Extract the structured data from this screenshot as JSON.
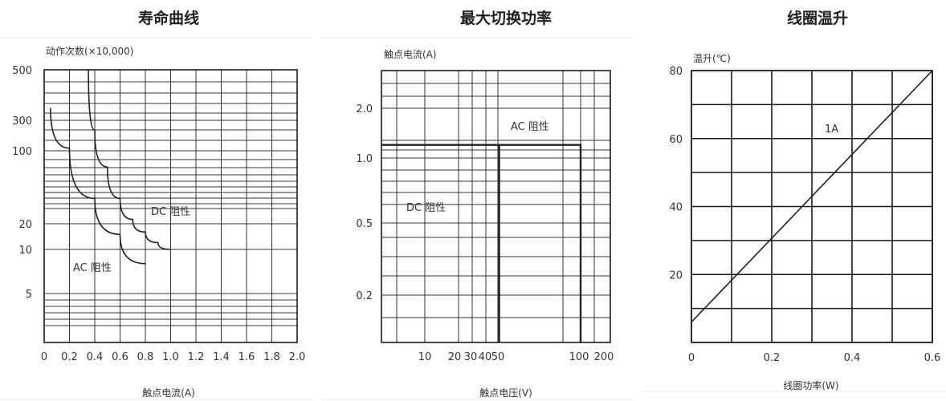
{
  "titles": [
    "寿命曲线",
    "最大切换功率",
    "线圈温升"
  ],
  "chart_data": [
    {
      "type": "line",
      "title": "寿命曲线",
      "ylabel": "动作次数(×10,000)",
      "xlabel": "触点电流(A)",
      "y_scale": "log",
      "x_ticks": [
        "0",
        "0.2",
        "0.4",
        "0.6",
        "0.8",
        "1.0",
        "1.2",
        "1.4",
        "1.6",
        "1.8",
        "2.0"
      ],
      "y_ticks": [
        "500",
        "300",
        "100",
        "20",
        "10",
        "5"
      ],
      "xlim": [
        0,
        2.0
      ],
      "series": [
        {
          "name": "DC 阻性",
          "x": [
            0.35,
            0.4,
            0.5,
            0.6,
            0.7,
            0.8,
            0.9,
            1.0
          ],
          "y": [
            500,
            210,
            70,
            35,
            22,
            16,
            12,
            10
          ]
        },
        {
          "name": "AC 阻性",
          "x": [
            0.05,
            0.2,
            0.4,
            0.6,
            0.8
          ],
          "y": [
            340,
            110,
            35,
            15,
            8
          ]
        }
      ]
    },
    {
      "type": "line",
      "title": "最大切换功率",
      "ylabel": "触点电流(A)",
      "xlabel": "触点电压(V)",
      "y_scale": "log",
      "x_scale": "log",
      "x_ticks": [
        "10",
        "20",
        "30",
        "40",
        "50",
        "100",
        "200"
      ],
      "y_ticks": [
        "2.0",
        "1.0",
        "0.5",
        "0.2"
      ],
      "series": [
        {
          "name": "AC 阻性",
          "x": [
            1,
            100,
            100
          ],
          "y": [
            1.2,
            1.2,
            0.1
          ]
        },
        {
          "name": "DC 阻性",
          "x": [
            30,
            30
          ],
          "y": [
            1.2,
            0.1
          ]
        }
      ]
    },
    {
      "type": "line",
      "title": "线圈温升",
      "ylabel": "温升(℃)",
      "xlabel": "线圈功率(W)",
      "x_ticks": [
        "0",
        "0.2",
        "0.4",
        "0.6"
      ],
      "y_ticks": [
        "80",
        "60",
        "40",
        "20"
      ],
      "xlim": [
        0,
        0.6
      ],
      "ylim": [
        0,
        80
      ],
      "series": [
        {
          "name": "1A",
          "x": [
            0,
            0.6
          ],
          "y": [
            6,
            80
          ]
        }
      ]
    }
  ]
}
